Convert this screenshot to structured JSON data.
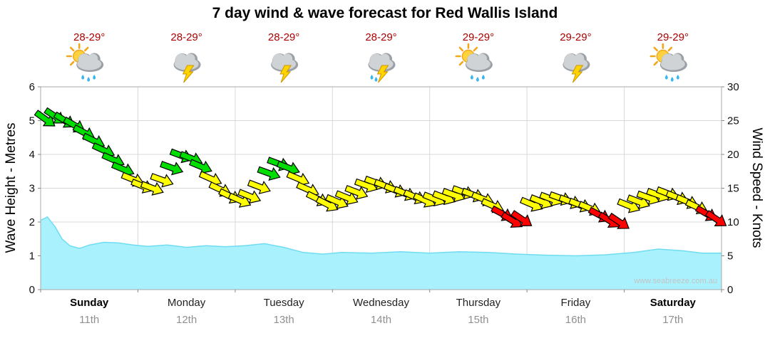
{
  "title": "7 day wind & wave forecast for Red Wallis Island",
  "watermark": "www.seabreeze.com.au",
  "colors": {
    "wave_fill": "#a9f1fd",
    "wave_edge": "#6fdcf2",
    "arrow_green": "#00dd00",
    "arrow_yellow": "#ffff00",
    "arrow_red": "#ff0000",
    "grid": "#d8d8d8",
    "plot_border": "#a8a8a8",
    "temp_text": "#aa0000",
    "day_text": "#222222",
    "weekend_text": "#000000",
    "date_text": "#909090"
  },
  "days": [
    {
      "name": "Sunday",
      "date": "11th",
      "temp": "28-29°",
      "icon": "sun-cloud-rain",
      "weekend": true
    },
    {
      "name": "Monday",
      "date": "12th",
      "temp": "28-29°",
      "icon": "storm",
      "weekend": false
    },
    {
      "name": "Tuesday",
      "date": "13th",
      "temp": "28-29°",
      "icon": "storm",
      "weekend": false
    },
    {
      "name": "Wednesday",
      "date": "14th",
      "temp": "28-29°",
      "icon": "storm-rain",
      "weekend": false
    },
    {
      "name": "Thursday",
      "date": "15th",
      "temp": "29-29°",
      "icon": "sun-cloud-rain",
      "weekend": false
    },
    {
      "name": "Friday",
      "date": "16th",
      "temp": "29-29°",
      "icon": "storm",
      "weekend": false
    },
    {
      "name": "Saturday",
      "date": "17th",
      "temp": "29-29°",
      "icon": "sun-cloud-rain",
      "weekend": true
    }
  ],
  "chart_data": {
    "type": "area+wind-arrows",
    "title": "7 day wind & wave forecast for Red Wallis Island",
    "x_unit": "days (0 = start of Sunday 11th, 7 = end of Saturday 17th)",
    "left_axis": {
      "label": "Wave Height - Metres",
      "min": 0,
      "max": 6,
      "ticks": [
        0,
        1,
        2,
        3,
        4,
        5,
        6
      ]
    },
    "right_axis": {
      "label": "Wind Speed - Knots",
      "min": 0,
      "max": 30,
      "ticks": [
        0,
        5,
        10,
        15,
        20,
        25,
        30
      ]
    },
    "wave_height_m": {
      "x": [
        0,
        0.07,
        0.15,
        0.22,
        0.3,
        0.4,
        0.5,
        0.65,
        0.8,
        0.95,
        1.1,
        1.3,
        1.5,
        1.7,
        1.9,
        2.1,
        2.3,
        2.5,
        2.7,
        2.9,
        3.1,
        3.4,
        3.7,
        4.0,
        4.3,
        4.6,
        4.9,
        5.2,
        5.5,
        5.8,
        6.1,
        6.35,
        6.6,
        6.8,
        7.0
      ],
      "y": [
        2.05,
        2.15,
        1.85,
        1.5,
        1.3,
        1.22,
        1.32,
        1.4,
        1.38,
        1.32,
        1.28,
        1.32,
        1.25,
        1.3,
        1.27,
        1.3,
        1.36,
        1.25,
        1.1,
        1.05,
        1.1,
        1.08,
        1.12,
        1.08,
        1.12,
        1.1,
        1.05,
        1.02,
        1.0,
        1.03,
        1.1,
        1.2,
        1.15,
        1.08,
        1.08
      ]
    },
    "wind_knots": {
      "x": [
        0.05,
        0.15,
        0.25,
        0.35,
        0.45,
        0.55,
        0.65,
        0.75,
        0.85,
        0.95,
        1.05,
        1.15,
        1.25,
        1.35,
        1.45,
        1.55,
        1.65,
        1.75,
        1.85,
        1.95,
        2.05,
        2.15,
        2.25,
        2.35,
        2.45,
        2.55,
        2.65,
        2.75,
        2.85,
        2.95,
        3.05,
        3.15,
        3.25,
        3.35,
        3.45,
        3.55,
        3.65,
        3.75,
        3.85,
        3.95,
        4.05,
        4.15,
        4.25,
        4.35,
        4.45,
        4.55,
        4.65,
        4.75,
        4.85,
        4.95,
        5.05,
        5.15,
        5.25,
        5.35,
        5.45,
        5.55,
        5.65,
        5.75,
        5.85,
        5.95,
        6.05,
        6.15,
        6.25,
        6.35,
        6.45,
        6.55,
        6.65,
        6.75,
        6.85,
        6.95
      ],
      "knots": [
        25.2,
        25.6,
        25.0,
        24.3,
        23.2,
        22.0,
        20.6,
        19.2,
        17.8,
        16.3,
        15.3,
        15.0,
        16.2,
        18.0,
        19.8,
        19.4,
        18.2,
        16.4,
        14.8,
        13.8,
        13.2,
        13.8,
        15.2,
        17.2,
        18.6,
        18.0,
        16.4,
        14.8,
        13.4,
        12.6,
        13.0,
        13.6,
        14.4,
        15.4,
        15.8,
        15.3,
        14.7,
        14.2,
        13.7,
        13.2,
        13.4,
        13.6,
        14.0,
        14.4,
        14.0,
        13.4,
        12.4,
        11.2,
        10.2,
        10.4,
        12.6,
        13.0,
        13.4,
        13.5,
        13.0,
        12.5,
        12.0,
        11.0,
        10.2,
        10.0,
        12.4,
        13.0,
        13.6,
        14.0,
        14.2,
        13.6,
        13.0,
        12.2,
        11.2,
        10.4
      ],
      "dir_deg": [
        126,
        124,
        122,
        120,
        118,
        116,
        115,
        114,
        113,
        112,
        112,
        111,
        110,
        110,
        111,
        112,
        113,
        114,
        115,
        116,
        114,
        112,
        111,
        110,
        110,
        111,
        113,
        114,
        116,
        117,
        113,
        112,
        111,
        110,
        110,
        111,
        112,
        113,
        114,
        115,
        112,
        111,
        110,
        110,
        111,
        112,
        114,
        118,
        122,
        124,
        113,
        112,
        111,
        110,
        111,
        112,
        113,
        118,
        122,
        124,
        112,
        111,
        110,
        110,
        111,
        112,
        113,
        115,
        120,
        124
      ],
      "color": [
        "green",
        "green",
        "green",
        "green",
        "green",
        "green",
        "green",
        "green",
        "green",
        "yellow",
        "yellow",
        "yellow",
        "yellow",
        "green",
        "green",
        "green",
        "green",
        "yellow",
        "yellow",
        "yellow",
        "yellow",
        "yellow",
        "yellow",
        "green",
        "green",
        "green",
        "yellow",
        "yellow",
        "yellow",
        "yellow",
        "yellow",
        "yellow",
        "yellow",
        "yellow",
        "yellow",
        "yellow",
        "yellow",
        "yellow",
        "yellow",
        "yellow",
        "yellow",
        "yellow",
        "yellow",
        "yellow",
        "yellow",
        "yellow",
        "yellow",
        "red",
        "red",
        "red",
        "yellow",
        "yellow",
        "yellow",
        "yellow",
        "yellow",
        "yellow",
        "yellow",
        "red",
        "red",
        "red",
        "yellow",
        "yellow",
        "yellow",
        "yellow",
        "yellow",
        "yellow",
        "yellow",
        "yellow",
        "red",
        "red"
      ]
    }
  }
}
